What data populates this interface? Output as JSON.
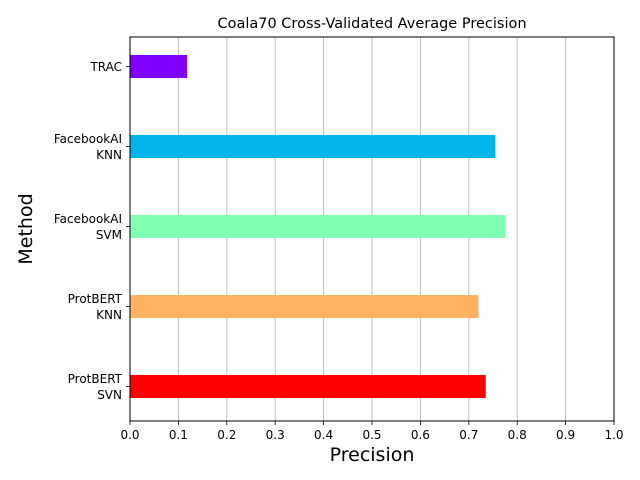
{
  "chart_data": {
    "type": "bar",
    "orientation": "horizontal",
    "title": "Coala70 Cross-Validated Average Precision",
    "xlabel": "Precision",
    "ylabel": "Method",
    "xlim": [
      0,
      1
    ],
    "xticks": [
      "0.0",
      "0.1",
      "0.2",
      "0.3",
      "0.4",
      "0.5",
      "0.6",
      "0.7",
      "0.8",
      "0.9",
      "1.0"
    ],
    "grid": "vertical",
    "bars": [
      {
        "label": [
          "ProtBERT",
          "SVN"
        ],
        "value": 0.735,
        "color": "#ff0000"
      },
      {
        "label": [
          "ProtBERT",
          "KNN"
        ],
        "value": 0.72,
        "color": "#ffb360"
      },
      {
        "label": [
          "FacebookAI",
          "SVM"
        ],
        "value": 0.775,
        "color": "#80ffb4"
      },
      {
        "label": [
          "FacebookAI",
          "KNN"
        ],
        "value": 0.755,
        "color": "#00b5eb"
      },
      {
        "label": [
          "TRAC"
        ],
        "value": 0.118,
        "color": "#8000ff"
      }
    ]
  }
}
